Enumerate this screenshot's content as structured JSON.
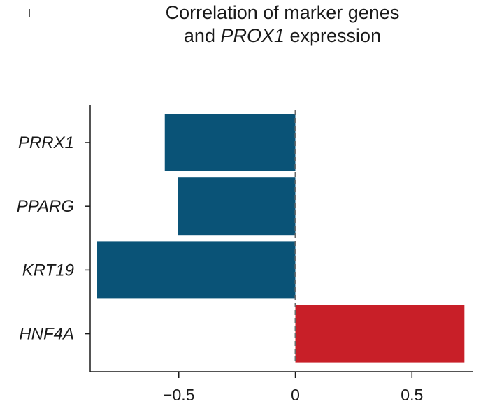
{
  "title": {
    "line1": "Correlation of marker genes",
    "line2_prefix": "and ",
    "line2_italic": "PROX1",
    "line2_suffix": " expression"
  },
  "chart_data": {
    "type": "bar",
    "orientation": "horizontal",
    "categories": [
      "PRRX1",
      "PPARG",
      "KRT19",
      "HNF4A"
    ],
    "values": [
      -0.56,
      -0.505,
      -0.85,
      0.725
    ],
    "xlim": [
      -0.88,
      0.76
    ],
    "xticks": [
      -0.5,
      0,
      0.5
    ],
    "xtick_labels": [
      "−0.5",
      "0",
      "0.5"
    ],
    "xlabel": "",
    "ylabel": "",
    "zero_line": "dashed",
    "grid": false,
    "legend": "none",
    "colors": {
      "negative": "#0a5377",
      "positive": "#c81f28",
      "axis": "#1a1a1a",
      "zero_line": "#6b6b6b"
    }
  }
}
